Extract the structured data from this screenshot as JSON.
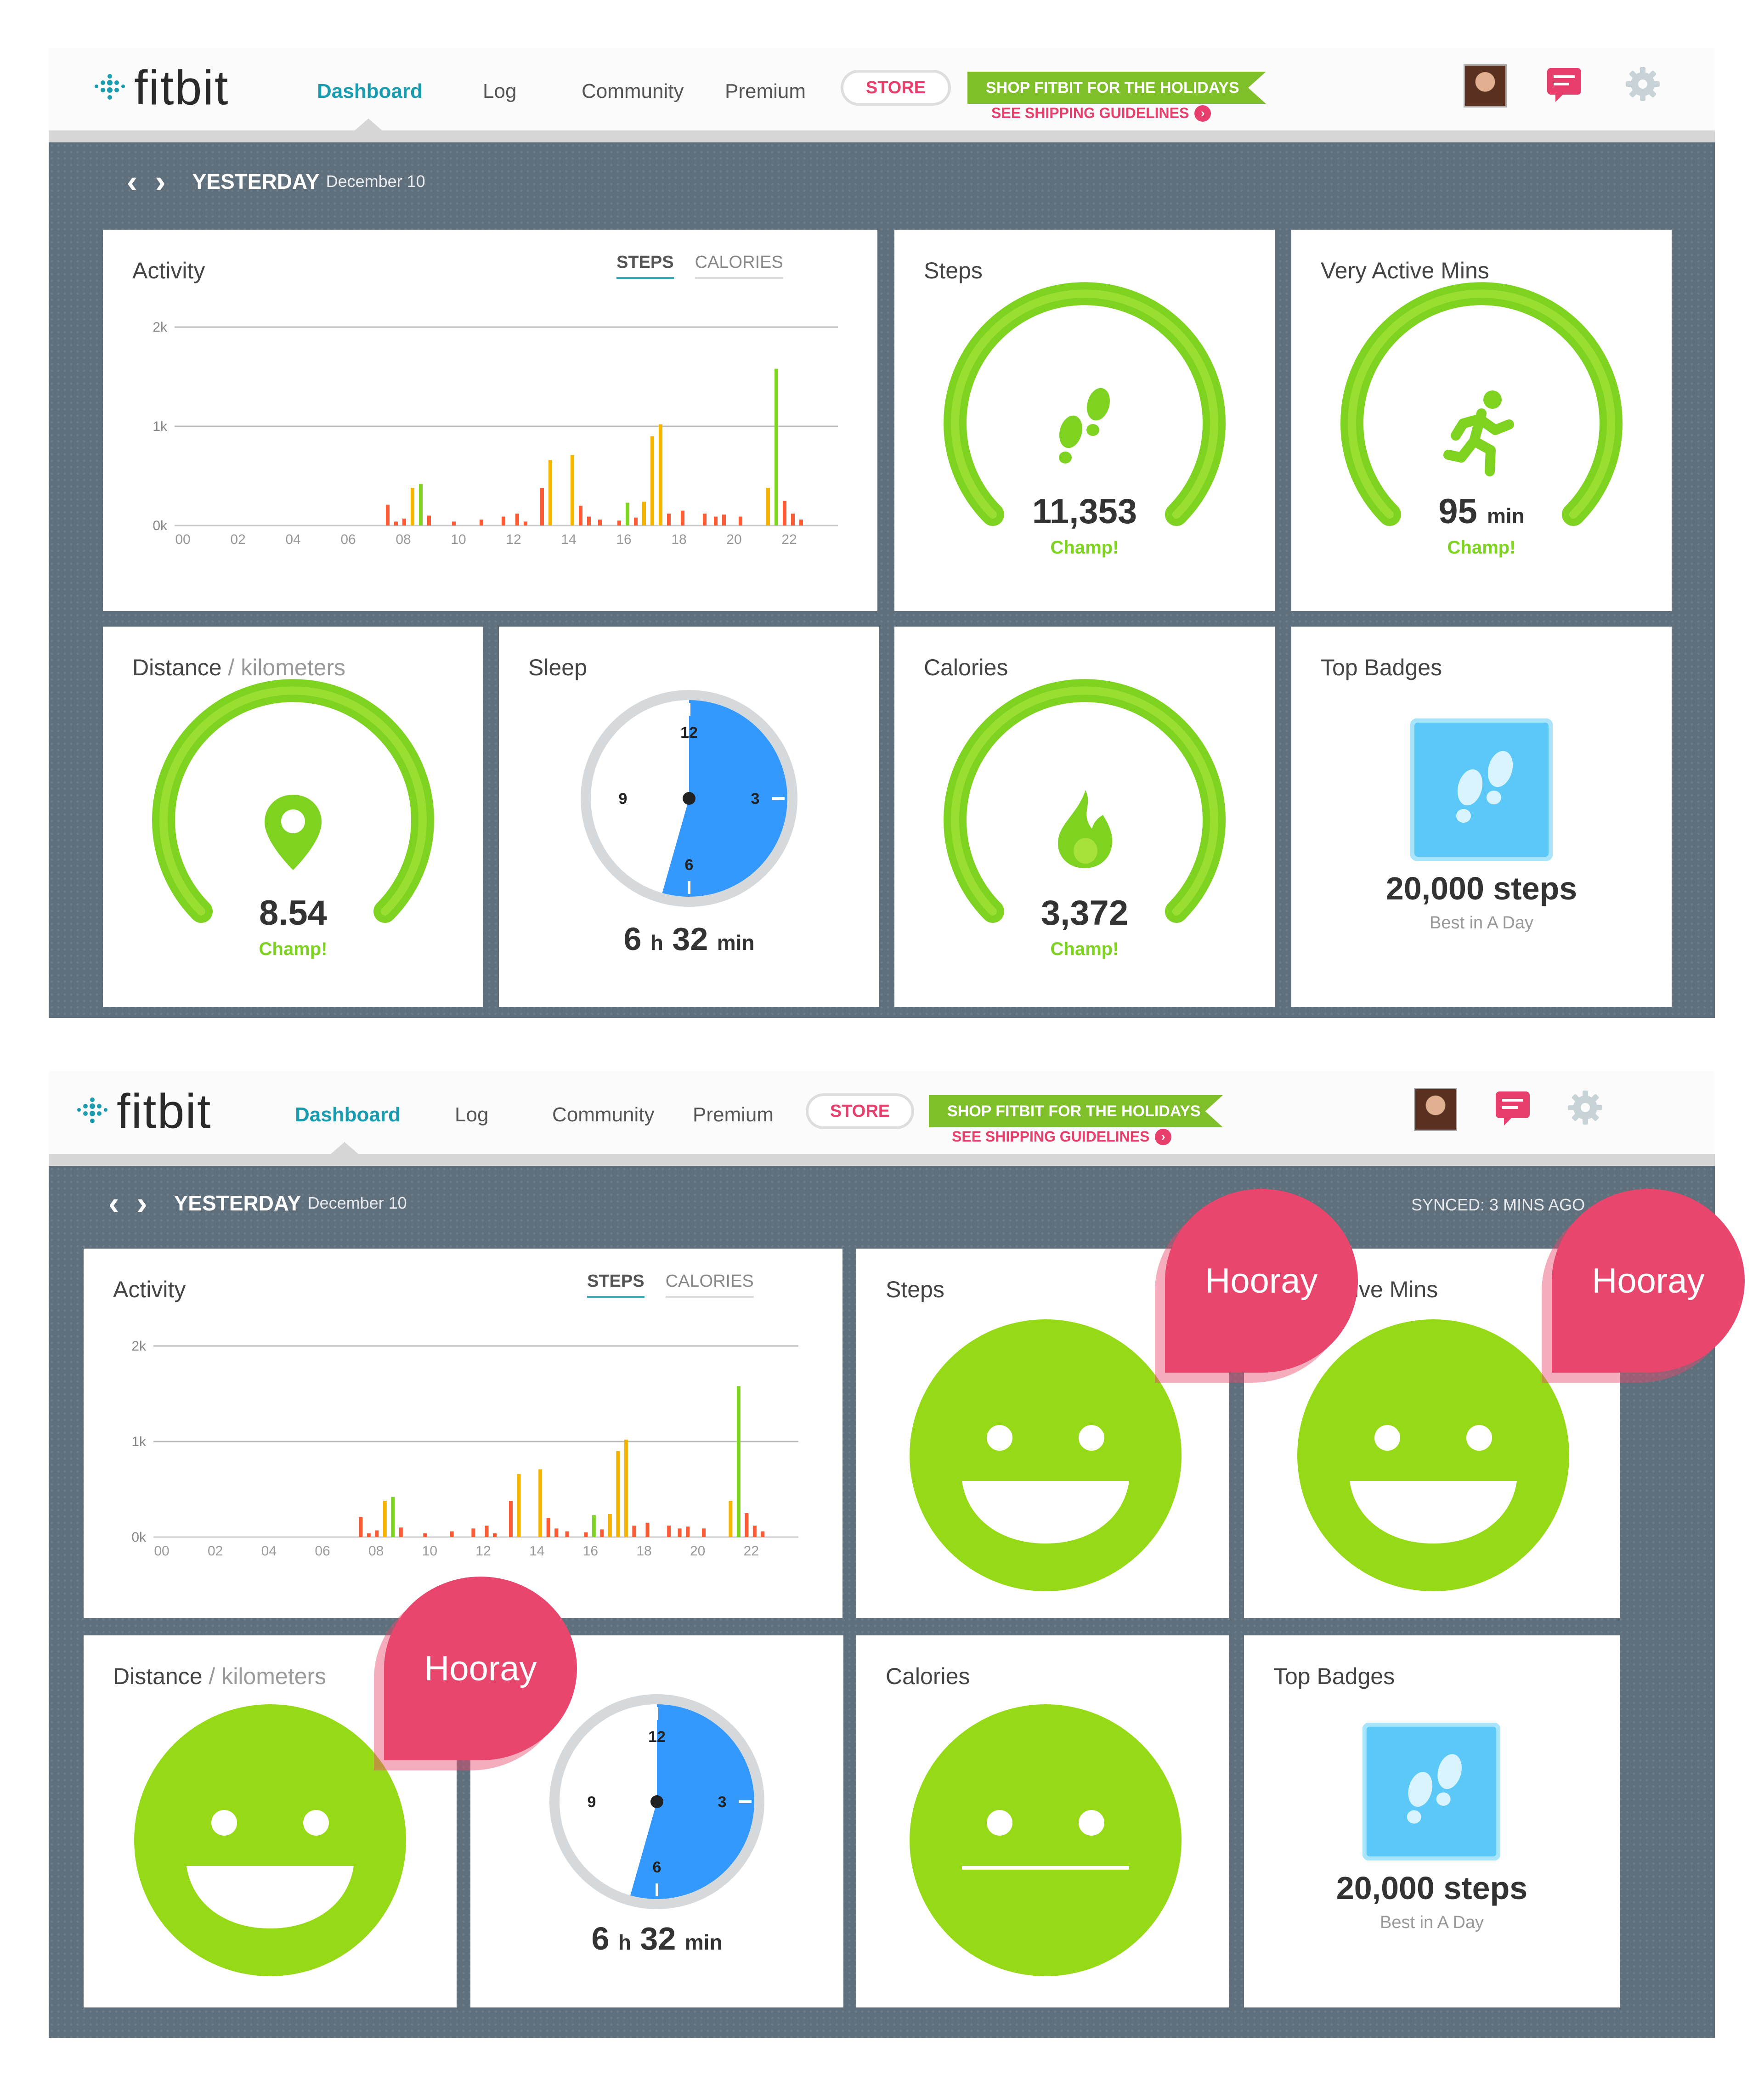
{
  "nav": {
    "logo": "fitbit",
    "items": [
      "Dashboard",
      "Log",
      "Community",
      "Premium"
    ],
    "store": "STORE",
    "promo": "SHOP FITBIT FOR THE HOLIDAYS",
    "promo_sub": "SEE SHIPPING GUIDELINES",
    "promo_arrow": "›"
  },
  "date": {
    "prev": "‹",
    "next": "›",
    "label": "YESTERDAY",
    "date": "December 10"
  },
  "synced": "SYNCED: 3 MINS AGO",
  "activity": {
    "title": "Activity",
    "tab_steps": "STEPS",
    "tab_calories": "CALORIES",
    "chart_data": {
      "type": "bar",
      "title": "Activity",
      "xlabel": "",
      "ylabel": "",
      "ylim": [
        0,
        2000
      ],
      "yticks": [
        "0k",
        "1k",
        "2k"
      ],
      "xticks": [
        "00",
        "02",
        "04",
        "06",
        "08",
        "10",
        "12",
        "14",
        "16",
        "18",
        "20",
        "22"
      ],
      "series": [
        {
          "name": "Steps",
          "values": [
            {
              "x": 7.6,
              "y": 210,
              "c": "#ff5a36"
            },
            {
              "x": 7.9,
              "y": 40,
              "c": "#ff5a36"
            },
            {
              "x": 8.2,
              "y": 70,
              "c": "#ff5a36"
            },
            {
              "x": 8.5,
              "y": 380,
              "c": "#f5b400"
            },
            {
              "x": 8.8,
              "y": 420,
              "c": "#7ed321"
            },
            {
              "x": 9.1,
              "y": 100,
              "c": "#ff5a36"
            },
            {
              "x": 10.0,
              "y": 40,
              "c": "#ff5a36"
            },
            {
              "x": 11.0,
              "y": 60,
              "c": "#ff5a36"
            },
            {
              "x": 11.8,
              "y": 90,
              "c": "#ff5a36"
            },
            {
              "x": 12.3,
              "y": 120,
              "c": "#ff5a36"
            },
            {
              "x": 12.6,
              "y": 40,
              "c": "#ff5a36"
            },
            {
              "x": 13.2,
              "y": 380,
              "c": "#ff5a36"
            },
            {
              "x": 13.5,
              "y": 660,
              "c": "#f5b400"
            },
            {
              "x": 14.3,
              "y": 710,
              "c": "#f5b400"
            },
            {
              "x": 14.6,
              "y": 200,
              "c": "#ff5a36"
            },
            {
              "x": 14.9,
              "y": 90,
              "c": "#ff5a36"
            },
            {
              "x": 15.3,
              "y": 60,
              "c": "#ff5a36"
            },
            {
              "x": 16.0,
              "y": 50,
              "c": "#ff5a36"
            },
            {
              "x": 16.3,
              "y": 230,
              "c": "#7ed321"
            },
            {
              "x": 16.6,
              "y": 80,
              "c": "#ff5a36"
            },
            {
              "x": 16.9,
              "y": 240,
              "c": "#f5b400"
            },
            {
              "x": 17.2,
              "y": 900,
              "c": "#f5b400"
            },
            {
              "x": 17.5,
              "y": 1020,
              "c": "#f5b400"
            },
            {
              "x": 17.8,
              "y": 120,
              "c": "#ff5a36"
            },
            {
              "x": 18.3,
              "y": 150,
              "c": "#ff5a36"
            },
            {
              "x": 19.1,
              "y": 120,
              "c": "#ff5a36"
            },
            {
              "x": 19.5,
              "y": 90,
              "c": "#ff5a36"
            },
            {
              "x": 19.8,
              "y": 110,
              "c": "#ff5a36"
            },
            {
              "x": 20.4,
              "y": 90,
              "c": "#ff5a36"
            },
            {
              "x": 21.4,
              "y": 380,
              "c": "#f5b400"
            },
            {
              "x": 21.7,
              "y": 1580,
              "c": "#7ed321"
            },
            {
              "x": 22.0,
              "y": 250,
              "c": "#ff5a36"
            },
            {
              "x": 22.3,
              "y": 120,
              "c": "#ff5a36"
            },
            {
              "x": 22.6,
              "y": 60,
              "c": "#ff5a36"
            }
          ]
        }
      ]
    }
  },
  "steps": {
    "title": "Steps",
    "value": "11,353",
    "unit": "",
    "champ": "Champ!",
    "icon": "footprints-icon"
  },
  "active": {
    "title": "Very Active Mins",
    "title_partial": "ctive Mins",
    "value": "95",
    "unit": "min",
    "champ": "Champ!",
    "icon": "runner-icon"
  },
  "distance": {
    "title": "Distance",
    "unit_label": " / kilometers",
    "value": "8.54",
    "champ": "Champ!",
    "icon": "map-pin-icon"
  },
  "sleep": {
    "title": "Sleep",
    "hours": "6",
    "h": "h",
    "mins": "32",
    "min": "min",
    "clock": [
      "12",
      "3",
      "6",
      "9"
    ],
    "fraction": 0.544
  },
  "calories": {
    "title": "Calories",
    "value": "3,372",
    "champ": "Champ!",
    "icon": "flame-icon"
  },
  "badges": {
    "title": "Top Badges",
    "value": "20,000 steps",
    "sub": "Best in A Day",
    "icon": "footprints-badge-icon"
  },
  "hooray": "Hooray",
  "colors": {
    "accent": "#1a9cb0",
    "green": "#7ed321",
    "pink": "#e8466c",
    "gauge": "#92d61c",
    "face": "#96d917",
    "sleep_blue": "#3399ff"
  }
}
